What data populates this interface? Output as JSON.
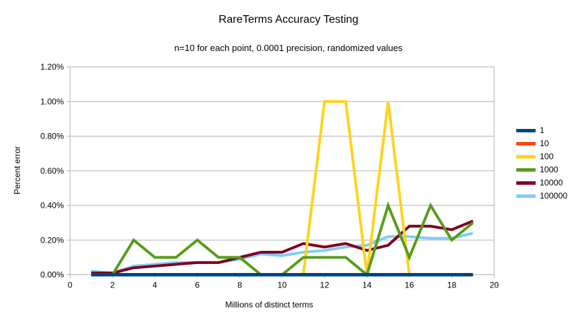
{
  "chart": {
    "title": "RareTerms Accuracy Testing",
    "subtitle": "n=10 for each point, 0.0001 precision, randomized values",
    "xlabel": "Millions of distinct terms",
    "ylabel": "Percent error"
  },
  "chart_data": {
    "type": "line",
    "title": "RareTerms Accuracy Testing",
    "subtitle": "n=10 for each point, 0.0001 precision, randomized values",
    "xlabel": "Millions of distinct terms",
    "ylabel": "Percent error",
    "legend_position": "right",
    "grid": "horizontal",
    "xlim": [
      0,
      20
    ],
    "ylim_percent": [
      0,
      1.2
    ],
    "x": [
      1,
      2,
      3,
      4,
      5,
      6,
      7,
      8,
      9,
      10,
      11,
      12,
      13,
      14,
      15,
      16,
      17,
      18,
      19
    ],
    "series": [
      {
        "name": "1",
        "color": "#004586",
        "values_percent": [
          0,
          0,
          0,
          0,
          0,
          0,
          0,
          0,
          0,
          0,
          0,
          0,
          0,
          0,
          0,
          0,
          0,
          0,
          0
        ]
      },
      {
        "name": "10",
        "color": "#FF420E",
        "values_percent": [
          0,
          0,
          0,
          0,
          0,
          0,
          0,
          0,
          0,
          0,
          0,
          0,
          0,
          0,
          0,
          0,
          0,
          0,
          0
        ]
      },
      {
        "name": "100",
        "color": "#FFD320",
        "values_percent": [
          0,
          0,
          0,
          0,
          0,
          0,
          0,
          0,
          0,
          0,
          0,
          1.0,
          1.0,
          0,
          1.0,
          0,
          0,
          0,
          0
        ]
      },
      {
        "name": "1000",
        "color": "#579D1C",
        "values_percent": [
          0,
          0,
          0.2,
          0.1,
          0.1,
          0.2,
          0.1,
          0.1,
          0,
          0,
          0.1,
          0.1,
          0.1,
          0,
          0.4,
          0.1,
          0.4,
          0.2,
          0.3
        ]
      },
      {
        "name": "10000",
        "color": "#7E0021",
        "values_percent": [
          0.01,
          0.01,
          0.04,
          0.05,
          0.06,
          0.07,
          0.07,
          0.1,
          0.13,
          0.13,
          0.18,
          0.16,
          0.18,
          0.14,
          0.17,
          0.28,
          0.28,
          0.26,
          0.31
        ]
      },
      {
        "name": "100000",
        "color": "#83CAFF",
        "values_percent": [
          0.02,
          0.01,
          0.05,
          0.06,
          0.07,
          0.07,
          0.07,
          0.09,
          0.12,
          0.11,
          0.13,
          0.14,
          0.16,
          0.17,
          0.22,
          0.22,
          0.21,
          0.21,
          0.24
        ]
      }
    ],
    "xticks": [
      0,
      2,
      4,
      6,
      8,
      10,
      12,
      14,
      16,
      18,
      20
    ],
    "yticks": [
      {
        "value": 0.0,
        "label": "0.00%"
      },
      {
        "value": 0.2,
        "label": "0.20%"
      },
      {
        "value": 0.4,
        "label": "0.40%"
      },
      {
        "value": 0.6,
        "label": "0.60%"
      },
      {
        "value": 0.8,
        "label": "0.80%"
      },
      {
        "value": 1.0,
        "label": "1.00%"
      },
      {
        "value": 1.2,
        "label": "1.20%"
      }
    ]
  },
  "colors": {
    "grid": "#b3b3b3",
    "axis": "#b3b3b3",
    "text": "#000000"
  }
}
